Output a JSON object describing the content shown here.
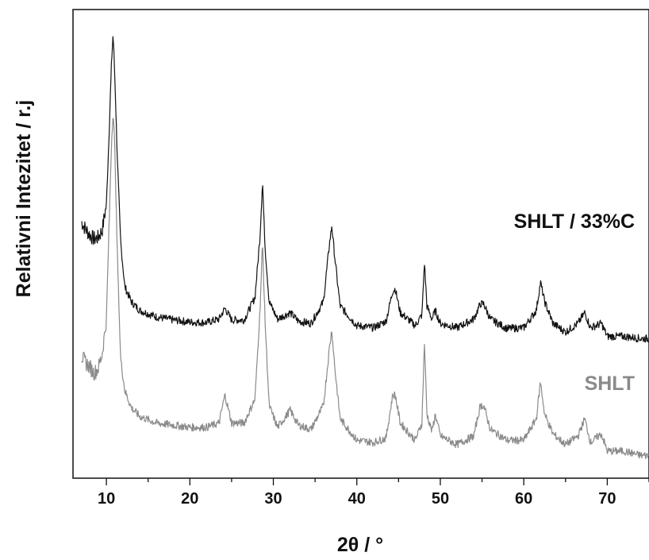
{
  "chart_data": {
    "type": "line",
    "xlabel": "2θ / °",
    "ylabel": "Relativni Intezitet / r.j",
    "xlim": [
      6,
      75
    ],
    "ylim": [
      0,
      1
    ],
    "x_ticks": [
      10,
      20,
      30,
      40,
      50,
      60,
      70
    ],
    "y_ticks": [],
    "grid": false,
    "legend": "inline labels (right side)",
    "series": [
      {
        "name": "SHLT / 33%C",
        "color": "#111111",
        "x": [
          7,
          7.5,
          8,
          8.5,
          9,
          9.5,
          10,
          10.3,
          10.6,
          10.8,
          11,
          11.3,
          11.7,
          12.2,
          13,
          14,
          16,
          18,
          20,
          22,
          23.5,
          24.2,
          25,
          26.5,
          27.8,
          28.4,
          28.7,
          29,
          29.5,
          30.5,
          31.5,
          32,
          33,
          34.5,
          36,
          36.7,
          37,
          37.4,
          38,
          40,
          42,
          43.5,
          44.3,
          44.6,
          45.2,
          47,
          47.8,
          48.1,
          48.4,
          49,
          49.4,
          50,
          52,
          54,
          54.8,
          55.2,
          56,
          58,
          60,
          61.5,
          62,
          62.5,
          63.5,
          65,
          66.5,
          67.3,
          68,
          69.3,
          70,
          72,
          74,
          75
        ],
        "y": [
          0.565,
          0.548,
          0.535,
          0.525,
          0.528,
          0.545,
          0.605,
          0.755,
          0.925,
          1.0,
          0.905,
          0.72,
          0.52,
          0.415,
          0.38,
          0.36,
          0.345,
          0.338,
          0.333,
          0.332,
          0.34,
          0.365,
          0.338,
          0.338,
          0.39,
          0.53,
          0.658,
          0.51,
          0.38,
          0.34,
          0.35,
          0.355,
          0.335,
          0.33,
          0.38,
          0.51,
          0.555,
          0.475,
          0.37,
          0.325,
          0.32,
          0.335,
          0.405,
          0.41,
          0.355,
          0.325,
          0.35,
          0.47,
          0.37,
          0.34,
          0.36,
          0.33,
          0.32,
          0.34,
          0.375,
          0.375,
          0.34,
          0.318,
          0.32,
          0.36,
          0.425,
          0.38,
          0.33,
          0.31,
          0.33,
          0.355,
          0.32,
          0.33,
          0.3,
          0.3,
          0.295,
          0.295
        ]
      },
      {
        "name": "SHLT",
        "color": "#8a8a8a",
        "x": [
          7,
          7.5,
          8,
          8.5,
          9,
          9.5,
          10,
          10.3,
          10.6,
          10.8,
          11,
          11.3,
          11.7,
          12.2,
          13,
          14,
          16,
          18,
          20,
          22,
          23.5,
          24.2,
          25,
          26.5,
          27.8,
          28.4,
          28.7,
          29,
          29.5,
          30.5,
          31.5,
          32,
          33,
          34.5,
          36,
          36.7,
          37,
          37.4,
          38,
          40,
          42,
          43.5,
          44.3,
          44.6,
          45.2,
          47,
          47.8,
          48.1,
          48.4,
          49,
          49.4,
          50,
          52,
          54,
          54.8,
          55.2,
          56,
          58,
          60,
          61.5,
          62,
          62.5,
          63.5,
          65,
          66.5,
          67.3,
          68,
          69.3,
          70,
          72,
          74,
          75
        ],
        "y": [
          0.255,
          0.24,
          0.23,
          0.215,
          0.225,
          0.26,
          0.34,
          0.54,
          0.74,
          0.82,
          0.74,
          0.5,
          0.25,
          0.175,
          0.135,
          0.115,
          0.1,
          0.095,
          0.09,
          0.09,
          0.1,
          0.165,
          0.1,
          0.1,
          0.155,
          0.36,
          0.515,
          0.34,
          0.14,
          0.09,
          0.115,
          0.13,
          0.095,
          0.085,
          0.14,
          0.27,
          0.315,
          0.22,
          0.11,
          0.06,
          0.055,
          0.065,
          0.165,
          0.165,
          0.1,
          0.06,
          0.1,
          0.285,
          0.12,
          0.08,
          0.12,
          0.07,
          0.05,
          0.07,
          0.14,
          0.14,
          0.085,
          0.06,
          0.06,
          0.11,
          0.195,
          0.12,
          0.075,
          0.05,
          0.07,
          0.11,
          0.055,
          0.075,
          0.035,
          0.035,
          0.025,
          0.025
        ]
      }
    ]
  }
}
